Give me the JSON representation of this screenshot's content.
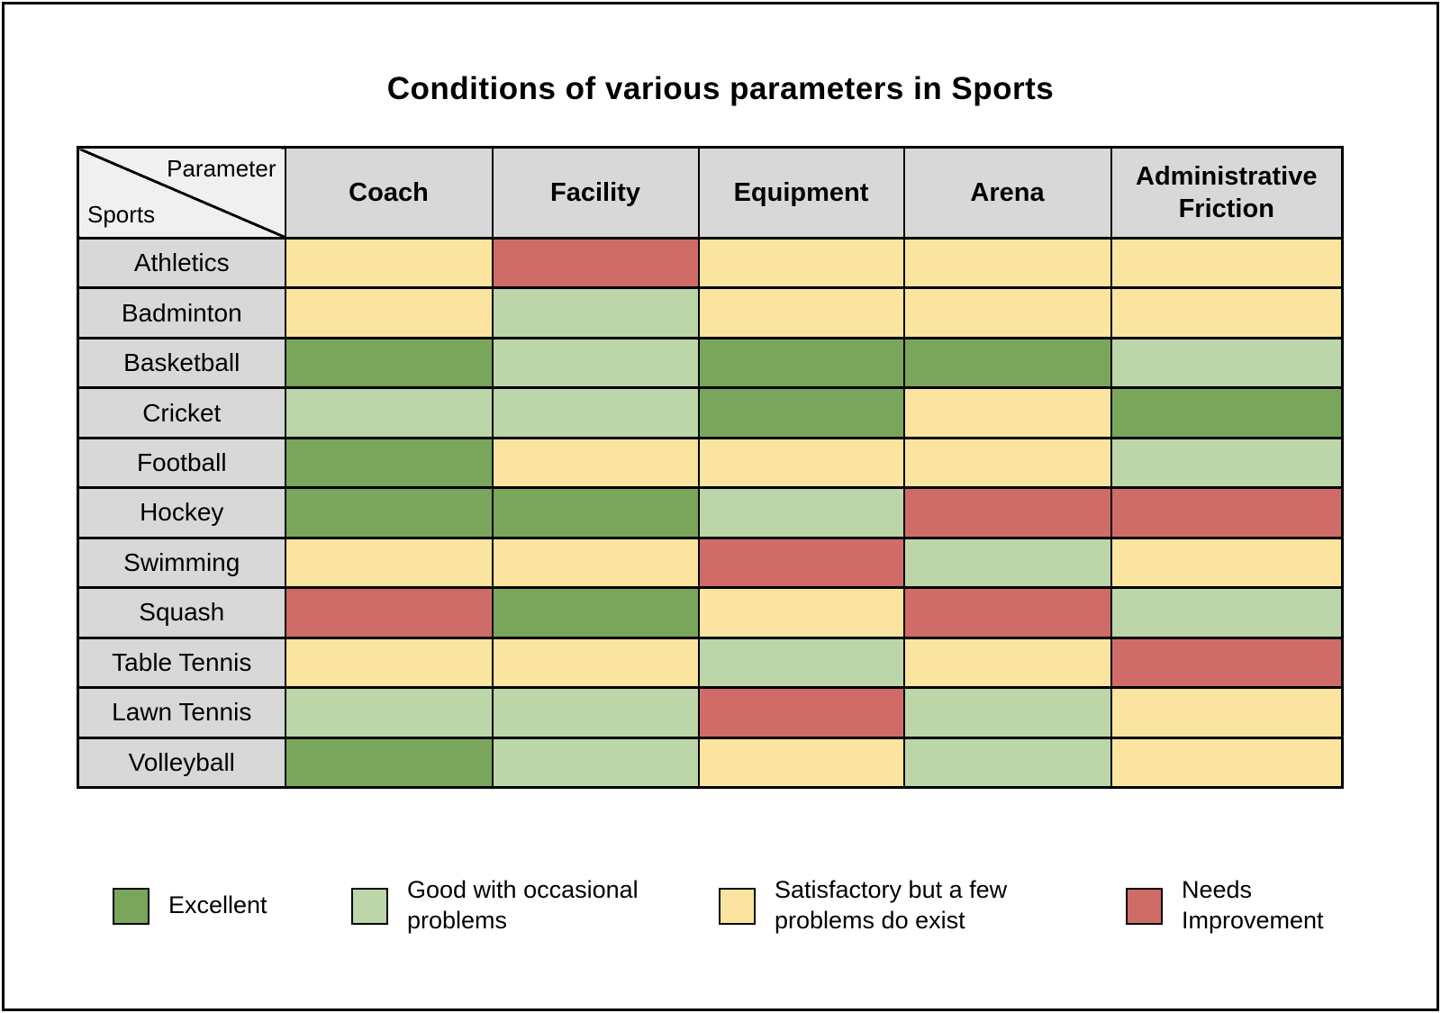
{
  "page": {
    "title": "Conditions of various parameters in Sports"
  },
  "colors": {
    "excellent": "#7AA65C",
    "good": "#BCD5A9",
    "satisfactory": "#FAE49F",
    "needs_improvement": "#D06C67",
    "header_bg": "#D8D8D8",
    "corner_bg": "#F0F0F0",
    "border": "#000000"
  },
  "table": {
    "corner": {
      "top_right_label": "Parameter",
      "bottom_left_label": "Sports"
    },
    "columns": [
      "Coach",
      "Facility",
      "Equipment",
      "Arena",
      "Administrative Friction"
    ],
    "rows": [
      {
        "sport": "Athletics",
        "levels": [
          "satisfactory",
          "needs_improvement",
          "satisfactory",
          "satisfactory",
          "satisfactory"
        ]
      },
      {
        "sport": "Badminton",
        "levels": [
          "satisfactory",
          "good",
          "satisfactory",
          "satisfactory",
          "satisfactory"
        ]
      },
      {
        "sport": "Basketball",
        "levels": [
          "excellent",
          "good",
          "excellent",
          "excellent",
          "good"
        ]
      },
      {
        "sport": "Cricket",
        "levels": [
          "good",
          "good",
          "excellent",
          "satisfactory",
          "excellent"
        ]
      },
      {
        "sport": "Football",
        "levels": [
          "excellent",
          "satisfactory",
          "satisfactory",
          "satisfactory",
          "good"
        ]
      },
      {
        "sport": "Hockey",
        "levels": [
          "excellent",
          "excellent",
          "good",
          "needs_improvement",
          "needs_improvement"
        ]
      },
      {
        "sport": "Swimming",
        "levels": [
          "satisfactory",
          "satisfactory",
          "needs_improvement",
          "good",
          "satisfactory"
        ]
      },
      {
        "sport": "Squash",
        "levels": [
          "needs_improvement",
          "excellent",
          "satisfactory",
          "needs_improvement",
          "good"
        ]
      },
      {
        "sport": "Table Tennis",
        "levels": [
          "satisfactory",
          "satisfactory",
          "good",
          "satisfactory",
          "needs_improvement"
        ]
      },
      {
        "sport": "Lawn Tennis",
        "levels": [
          "good",
          "good",
          "needs_improvement",
          "good",
          "satisfactory"
        ]
      },
      {
        "sport": "Volleyball",
        "levels": [
          "excellent",
          "good",
          "satisfactory",
          "good",
          "satisfactory"
        ]
      }
    ]
  },
  "legend": [
    {
      "level": "excellent",
      "label": "Excellent"
    },
    {
      "level": "good",
      "label": "Good with occasional problems"
    },
    {
      "level": "satisfactory",
      "label": "Satisfactory but a few problems do exist"
    },
    {
      "level": "needs_improvement",
      "label": "Needs Improvement"
    }
  ],
  "chart_data": {
    "type": "heatmap",
    "title": "Conditions of various parameters in Sports",
    "x_categories": [
      "Coach",
      "Facility",
      "Equipment",
      "Arena",
      "Administrative Friction"
    ],
    "y_categories": [
      "Athletics",
      "Badminton",
      "Basketball",
      "Cricket",
      "Football",
      "Hockey",
      "Swimming",
      "Squash",
      "Table Tennis",
      "Lawn Tennis",
      "Volleyball"
    ],
    "values": [
      [
        "satisfactory",
        "needs_improvement",
        "satisfactory",
        "satisfactory",
        "satisfactory"
      ],
      [
        "satisfactory",
        "good",
        "satisfactory",
        "satisfactory",
        "satisfactory"
      ],
      [
        "excellent",
        "good",
        "excellent",
        "excellent",
        "good"
      ],
      [
        "good",
        "good",
        "excellent",
        "satisfactory",
        "excellent"
      ],
      [
        "excellent",
        "satisfactory",
        "satisfactory",
        "satisfactory",
        "good"
      ],
      [
        "excellent",
        "excellent",
        "good",
        "needs_improvement",
        "needs_improvement"
      ],
      [
        "satisfactory",
        "satisfactory",
        "needs_improvement",
        "good",
        "satisfactory"
      ],
      [
        "needs_improvement",
        "excellent",
        "satisfactory",
        "needs_improvement",
        "good"
      ],
      [
        "satisfactory",
        "satisfactory",
        "good",
        "satisfactory",
        "needs_improvement"
      ],
      [
        "good",
        "good",
        "needs_improvement",
        "good",
        "satisfactory"
      ],
      [
        "excellent",
        "good",
        "satisfactory",
        "good",
        "satisfactory"
      ]
    ],
    "value_scale": {
      "excellent": "Excellent",
      "good": "Good with occasional problems",
      "satisfactory": "Satisfactory but a few problems do exist",
      "needs_improvement": "Needs Improvement"
    },
    "legend_position": "bottom",
    "grid": true
  }
}
